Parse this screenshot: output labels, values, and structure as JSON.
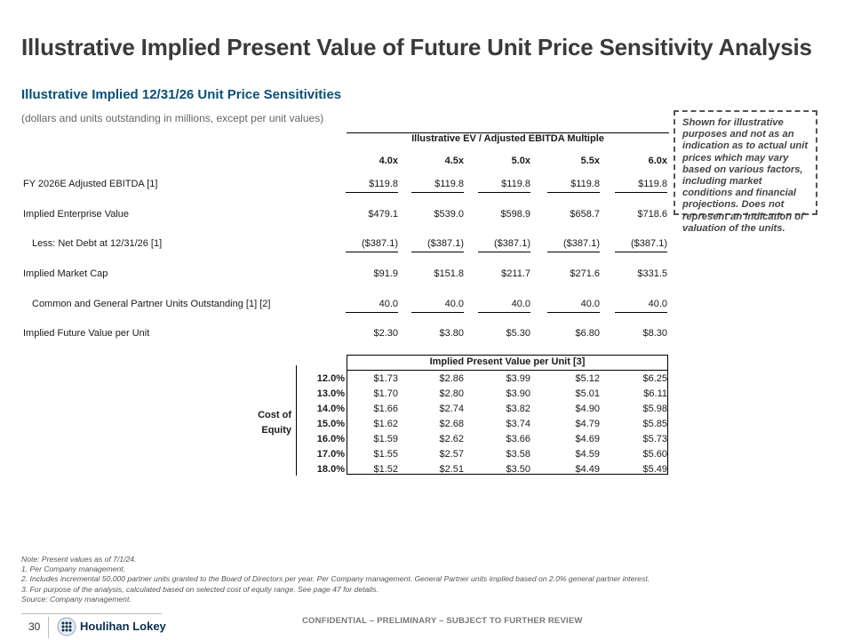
{
  "title": "Illustrative Implied Present Value of Future Unit Price Sensitivity Analysis",
  "subtitle": "Illustrative Implied 12/31/26 Unit Price Sensitivities",
  "unit_note": "(dollars and units outstanding in millions, except per unit values)",
  "callout": "Shown for illustrative purposes and not as an indication as to actual unit prices which may vary based on various factors, including market conditions and financial projections. Does not represent an indication of valuation of the units.",
  "multiple_header": "Illustrative EV / Adjusted EBITDA Multiple",
  "multiples": [
    "4.0x",
    "4.5x",
    "5.0x",
    "5.5x",
    "6.0x"
  ],
  "rows": [
    {
      "label": "FY 2026E Adjusted EBITDA [1]",
      "values": [
        "$119.8",
        "$119.8",
        "$119.8",
        "$119.8",
        "$119.8"
      ]
    },
    {
      "label": "Implied Enterprise Value",
      "values": [
        "$479.1",
        "$539.0",
        "$598.9",
        "$658.7",
        "$718.6"
      ]
    },
    {
      "label": "Less: Net Debt at 12/31/26 [1]",
      "values": [
        "($387.1)",
        "($387.1)",
        "($387.1)",
        "($387.1)",
        "($387.1)"
      ]
    },
    {
      "label": "Implied Market Cap",
      "values": [
        "$91.9",
        "$151.8",
        "$211.7",
        "$271.6",
        "$331.5"
      ]
    },
    {
      "label": "Common and General Partner Units Outstanding [1] [2]",
      "values": [
        "40.0",
        "40.0",
        "40.0",
        "40.0",
        "40.0"
      ]
    },
    {
      "label": "Implied Future Value per Unit",
      "values": [
        "$2.30",
        "$3.80",
        "$5.30",
        "$6.80",
        "$8.30"
      ]
    }
  ],
  "sensitivity": {
    "header": "Implied Present Value per Unit [3]",
    "axis_label_line1": "Cost of",
    "axis_label_line2": "Equity",
    "rows": [
      {
        "rate": "12.0%",
        "values": [
          "$1.73",
          "$2.86",
          "$3.99",
          "$5.12",
          "$6.25"
        ]
      },
      {
        "rate": "13.0%",
        "values": [
          "$1.70",
          "$2.80",
          "$3.90",
          "$5.01",
          "$6.11"
        ]
      },
      {
        "rate": "14.0%",
        "values": [
          "$1.66",
          "$2.74",
          "$3.82",
          "$4.90",
          "$5.98"
        ]
      },
      {
        "rate": "15.0%",
        "values": [
          "$1.62",
          "$2.68",
          "$3.74",
          "$4.79",
          "$5.85"
        ]
      },
      {
        "rate": "16.0%",
        "values": [
          "$1.59",
          "$2.62",
          "$3.66",
          "$4.69",
          "$5.73"
        ]
      },
      {
        "rate": "17.0%",
        "values": [
          "$1.55",
          "$2.57",
          "$3.58",
          "$4.59",
          "$5.60"
        ]
      },
      {
        "rate": "18.0%",
        "values": [
          "$1.52",
          "$2.51",
          "$3.50",
          "$4.49",
          "$5.49"
        ]
      }
    ]
  },
  "notes": {
    "note": "Note: Present values as of 7/1/24.",
    "items": [
      "1.   Per Company management.",
      "2.   Includes incremental 50,000 partner units granted to the Board of Directors per year. Per Company management. General Partner units implied based on 2.0% general partner interest.",
      "3.   For purpose of the analysis, calculated based on selected cost of equity range. See page 47 for details."
    ],
    "source": "Source: Company management."
  },
  "footer": {
    "page_number": "30",
    "logo_text": "Houlihan Lokey",
    "confidential": "CONFIDENTIAL – PRELIMINARY – SUBJECT TO FURTHER REVIEW"
  },
  "colors": {
    "title": "#3a3a3a",
    "subtitle": "#0b4f79",
    "logo": "#0b2d4f"
  }
}
